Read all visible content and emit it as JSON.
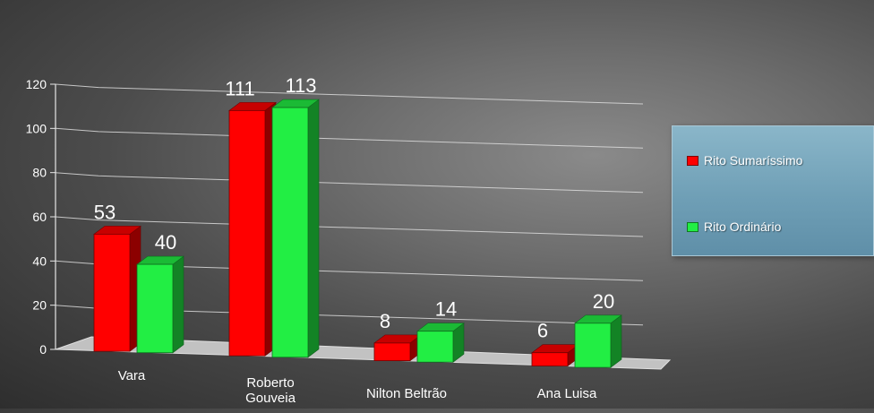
{
  "chart_data": {
    "type": "bar",
    "categories": [
      "Vara",
      "Roberto Gouveia",
      "Nilton Beltrão",
      "Ana Luisa"
    ],
    "series": [
      {
        "name": "Rito Sumaríssimo",
        "values": [
          53,
          111,
          8,
          6
        ],
        "color": "#ff0000"
      },
      {
        "name": "Rito Ordinário",
        "values": [
          40,
          113,
          14,
          20
        ],
        "color": "#22ee44"
      }
    ],
    "ylim": [
      0,
      120
    ],
    "yticks": [
      0,
      20,
      40,
      60,
      80,
      100,
      120
    ],
    "grid": true,
    "legend_position": "right",
    "title": "",
    "xlabel": "",
    "ylabel": ""
  }
}
